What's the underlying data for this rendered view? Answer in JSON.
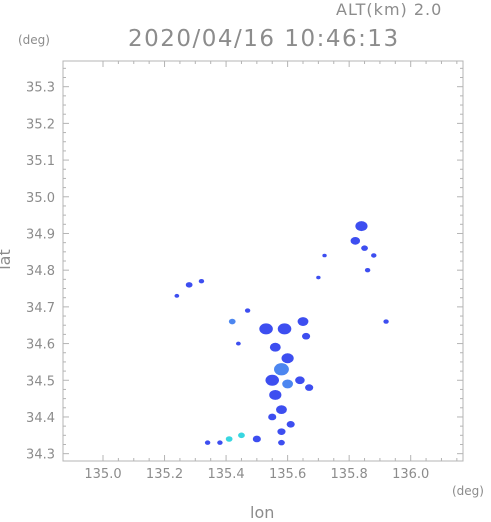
{
  "header": {
    "altitude_label": "ALT(km)",
    "altitude_value": "2.0",
    "timestamp": "2020/04/16 10:46:13"
  },
  "axes": {
    "y_unit": "(deg)",
    "x_unit": "(deg)",
    "y_label": "lat",
    "x_label": "lon"
  },
  "map": {
    "type": "radar-echo-map",
    "x_ticks": [
      "135.0",
      "135.2",
      "135.4",
      "135.6",
      "135.8",
      "136.0"
    ],
    "y_ticks": [
      "34.3",
      "34.4",
      "34.5",
      "34.6",
      "34.7",
      "34.8",
      "34.9",
      "35.0",
      "35.1",
      "35.2",
      "35.3"
    ],
    "xlim": [
      134.87,
      136.17
    ],
    "ylim": [
      34.28,
      35.37
    ],
    "grid": false,
    "colors": {
      "frame": "#b4b4b4",
      "text": "#8c8c8c",
      "echo_main": "#3d4ef0",
      "echo_light": "#4c86f0",
      "echo_cyan": "#38d6e0"
    },
    "echoes": [
      {
        "lon": 135.84,
        "lat": 34.92,
        "r": 0.018,
        "level": "main"
      },
      {
        "lon": 135.82,
        "lat": 34.88,
        "r": 0.014,
        "level": "main"
      },
      {
        "lon": 135.85,
        "lat": 34.86,
        "r": 0.01,
        "level": "main"
      },
      {
        "lon": 135.88,
        "lat": 34.84,
        "r": 0.008,
        "level": "main"
      },
      {
        "lon": 135.86,
        "lat": 34.8,
        "r": 0.008,
        "level": "main"
      },
      {
        "lon": 135.72,
        "lat": 34.84,
        "r": 0.006,
        "level": "main"
      },
      {
        "lon": 135.7,
        "lat": 34.78,
        "r": 0.006,
        "level": "main"
      },
      {
        "lon": 135.92,
        "lat": 34.66,
        "r": 0.008,
        "level": "main"
      },
      {
        "lon": 135.28,
        "lat": 34.76,
        "r": 0.01,
        "level": "main"
      },
      {
        "lon": 135.32,
        "lat": 34.77,
        "r": 0.008,
        "level": "main"
      },
      {
        "lon": 135.24,
        "lat": 34.73,
        "r": 0.007,
        "level": "main"
      },
      {
        "lon": 135.47,
        "lat": 34.69,
        "r": 0.008,
        "level": "main"
      },
      {
        "lon": 135.42,
        "lat": 34.66,
        "r": 0.01,
        "level": "light"
      },
      {
        "lon": 135.44,
        "lat": 34.6,
        "r": 0.007,
        "level": "main"
      },
      {
        "lon": 135.53,
        "lat": 34.64,
        "r": 0.02,
        "level": "main"
      },
      {
        "lon": 135.59,
        "lat": 34.64,
        "r": 0.02,
        "level": "main"
      },
      {
        "lon": 135.65,
        "lat": 34.66,
        "r": 0.016,
        "level": "main"
      },
      {
        "lon": 135.66,
        "lat": 34.62,
        "r": 0.012,
        "level": "main"
      },
      {
        "lon": 135.56,
        "lat": 34.59,
        "r": 0.016,
        "level": "main"
      },
      {
        "lon": 135.6,
        "lat": 34.56,
        "r": 0.018,
        "level": "main"
      },
      {
        "lon": 135.58,
        "lat": 34.53,
        "r": 0.022,
        "level": "light"
      },
      {
        "lon": 135.55,
        "lat": 34.5,
        "r": 0.02,
        "level": "main"
      },
      {
        "lon": 135.6,
        "lat": 34.49,
        "r": 0.016,
        "level": "light"
      },
      {
        "lon": 135.64,
        "lat": 34.5,
        "r": 0.014,
        "level": "main"
      },
      {
        "lon": 135.67,
        "lat": 34.48,
        "r": 0.012,
        "level": "main"
      },
      {
        "lon": 135.56,
        "lat": 34.46,
        "r": 0.018,
        "level": "main"
      },
      {
        "lon": 135.58,
        "lat": 34.42,
        "r": 0.016,
        "level": "main"
      },
      {
        "lon": 135.55,
        "lat": 34.4,
        "r": 0.012,
        "level": "main"
      },
      {
        "lon": 135.61,
        "lat": 34.38,
        "r": 0.012,
        "level": "main"
      },
      {
        "lon": 135.58,
        "lat": 34.36,
        "r": 0.012,
        "level": "main"
      },
      {
        "lon": 135.58,
        "lat": 34.33,
        "r": 0.01,
        "level": "main"
      },
      {
        "lon": 135.5,
        "lat": 34.34,
        "r": 0.012,
        "level": "main"
      },
      {
        "lon": 135.45,
        "lat": 34.35,
        "r": 0.01,
        "level": "cyan"
      },
      {
        "lon": 135.41,
        "lat": 34.34,
        "r": 0.01,
        "level": "cyan"
      },
      {
        "lon": 135.38,
        "lat": 34.33,
        "r": 0.008,
        "level": "main"
      },
      {
        "lon": 135.34,
        "lat": 34.33,
        "r": 0.008,
        "level": "main"
      }
    ]
  }
}
